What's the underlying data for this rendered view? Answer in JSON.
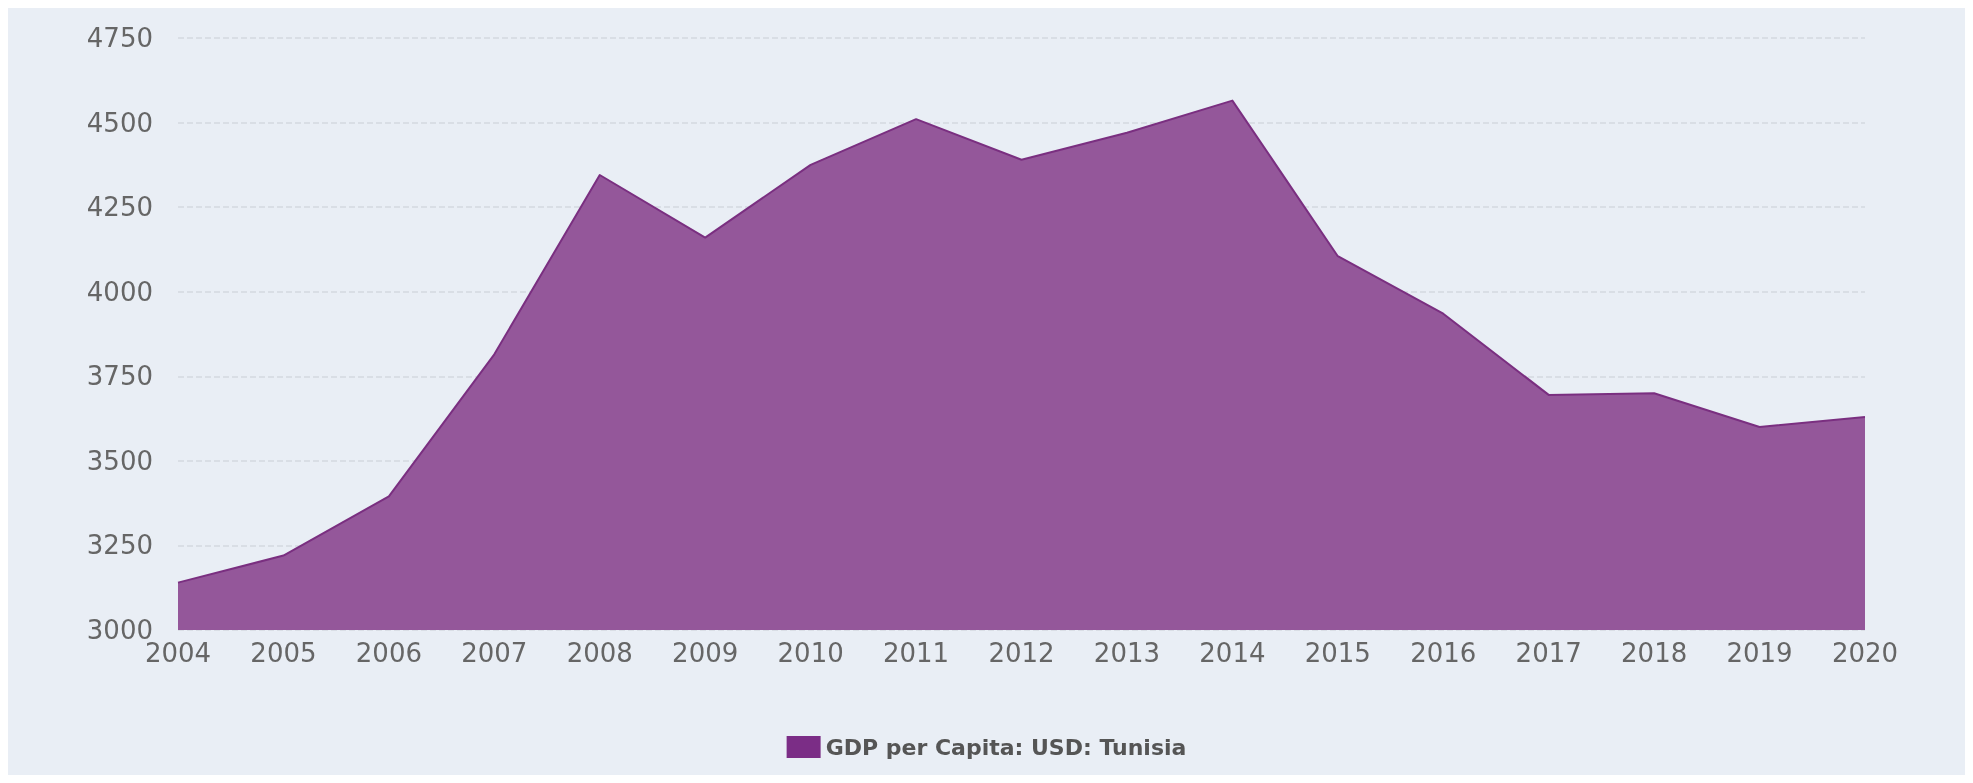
{
  "chart_data": {
    "type": "area",
    "categories": [
      "2004",
      "2005",
      "2006",
      "2007",
      "2008",
      "2009",
      "2010",
      "2011",
      "2012",
      "2013",
      "2014",
      "2015",
      "2016",
      "2017",
      "2018",
      "2019",
      "2020"
    ],
    "series": [
      {
        "name": "GDP per Capita: USD: Tunisia",
        "color": "#94579a",
        "values": [
          3140,
          3220,
          3395,
          3815,
          4345,
          4160,
          4375,
          4510,
          4390,
          4470,
          4565,
          4105,
          3935,
          3695,
          3700,
          3600,
          3630
        ]
      }
    ],
    "ylim": [
      3000,
      4750
    ],
    "yticks": [
      3000,
      3250,
      3500,
      3750,
      4000,
      4250,
      4500,
      4750
    ],
    "grid": "y",
    "legend": "bottom",
    "marker": "none",
    "line_style": "solid"
  }
}
